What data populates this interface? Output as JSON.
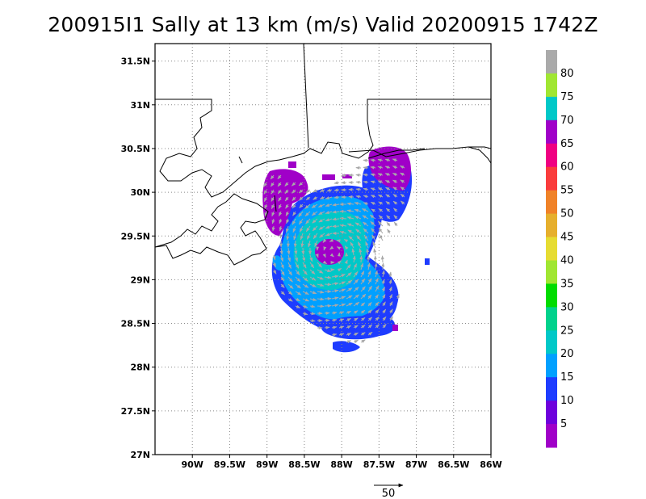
{
  "title": "200915I1 Sally at 13 km (m/s) Valid 20200915 1742Z",
  "map": {
    "lon_range": [
      -90.5,
      -86.0
    ],
    "lat_range": [
      27.0,
      31.7
    ],
    "lon_ticks": [
      {
        "value": -90.0,
        "label": "90W"
      },
      {
        "value": -89.5,
        "label": "89.5W"
      },
      {
        "value": -89.0,
        "label": "89W"
      },
      {
        "value": -88.5,
        "label": "88.5W"
      },
      {
        "value": -88.0,
        "label": "88W"
      },
      {
        "value": -87.5,
        "label": "87.5W"
      },
      {
        "value": -87.0,
        "label": "87W"
      },
      {
        "value": -86.5,
        "label": "86.5W"
      },
      {
        "value": -86.0,
        "label": "86W"
      }
    ],
    "lat_ticks": [
      {
        "value": 27.0,
        "label": "27N"
      },
      {
        "value": 27.5,
        "label": "27.5N"
      },
      {
        "value": 28.0,
        "label": "28N"
      },
      {
        "value": 28.5,
        "label": "28.5N"
      },
      {
        "value": 29.0,
        "label": "29N"
      },
      {
        "value": 29.5,
        "label": "29.5N"
      },
      {
        "value": 30.0,
        "label": "30N"
      },
      {
        "value": 30.5,
        "label": "30.5N"
      },
      {
        "value": 31.0,
        "label": "31N"
      },
      {
        "value": 31.5,
        "label": "31.5N"
      }
    ],
    "grid": "dotted",
    "storm_center": {
      "lon": -88.1,
      "lat": 29.3
    }
  },
  "colorbar": {
    "labels": [
      "5",
      "10",
      "15",
      "20",
      "25",
      "30",
      "35",
      "40",
      "45",
      "50",
      "55",
      "60",
      "65",
      "70",
      "75",
      "80"
    ],
    "colors": [
      "#a000c8",
      "#6e00dc",
      "#1e3cff",
      "#00a0ff",
      "#00c8c8",
      "#00d28c",
      "#00dc00",
      "#a0e632",
      "#e6dc32",
      "#e6af2d",
      "#f08228",
      "#fa3c3c",
      "#f00082",
      "#a000c8",
      "#00c8c8",
      "#a0e632",
      "#aaaaaa"
    ]
  },
  "reference_vector": {
    "label": "50"
  },
  "chart_data": {
    "type": "heatmap",
    "title": "200915I1 Sally at 13 km (m/s) Valid 20200915 1742Z",
    "xlabel": "",
    "ylabel": "",
    "xlim": [
      -90.5,
      -86.0
    ],
    "ylim": [
      27.0,
      31.7
    ],
    "units": "m/s",
    "levels": [
      5,
      10,
      15,
      20,
      25,
      30,
      35,
      40,
      45,
      50,
      55,
      60,
      65,
      70,
      75,
      80
    ],
    "regions": [
      {
        "lon": -88.6,
        "lat": 29.95,
        "speed": 3
      },
      {
        "lon": -87.35,
        "lat": 30.25,
        "speed": 3
      },
      {
        "lon": -88.1,
        "lat": 29.3,
        "speed": 3
      },
      {
        "lon": -88.15,
        "lat": 29.45,
        "speed": 17
      },
      {
        "lon": -87.5,
        "lat": 29.9,
        "speed": 12
      },
      {
        "lon": -87.8,
        "lat": 28.6,
        "speed": 14
      },
      {
        "lon": -88.0,
        "lat": 28.2,
        "speed": 12
      }
    ]
  }
}
